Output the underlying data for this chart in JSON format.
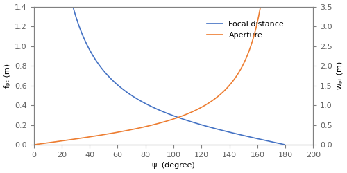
{
  "title": "",
  "xlabel": "ψᵣ (degree)",
  "ylabel_left": "fₚₜ (m)",
  "ylabel_right": "wₚₜ (m)",
  "xlim": [
    0,
    200
  ],
  "ylim_left": [
    0,
    1.4
  ],
  "ylim_right": [
    0.0,
    3.5
  ],
  "xticks": [
    0,
    20,
    40,
    60,
    80,
    100,
    120,
    140,
    160,
    180,
    200
  ],
  "yticks_left": [
    0,
    0.2,
    0.4,
    0.6,
    0.8,
    1.0,
    1.2,
    1.4
  ],
  "yticks_right": [
    0.0,
    0.5,
    1.0,
    1.5,
    2.0,
    2.5,
    3.0,
    3.5
  ],
  "color_focal": "#4472C4",
  "color_aperture": "#ED7D31",
  "legend_focal": "Focal distance",
  "legend_aperture": "Aperture",
  "bg_color": "#FFFFFF",
  "psi_start": 0.5,
  "psi_end": 179.5,
  "num_points": 1000,
  "k_focal": 0.3498,
  "k_aperture": 0.5477,
  "figsize": [
    5.0,
    2.5
  ],
  "dpi": 100,
  "linewidth": 1.2,
  "spine_color": "#808080",
  "tick_color": "#606060",
  "label_fontsize": 8,
  "tick_fontsize": 8,
  "legend_fontsize": 8
}
